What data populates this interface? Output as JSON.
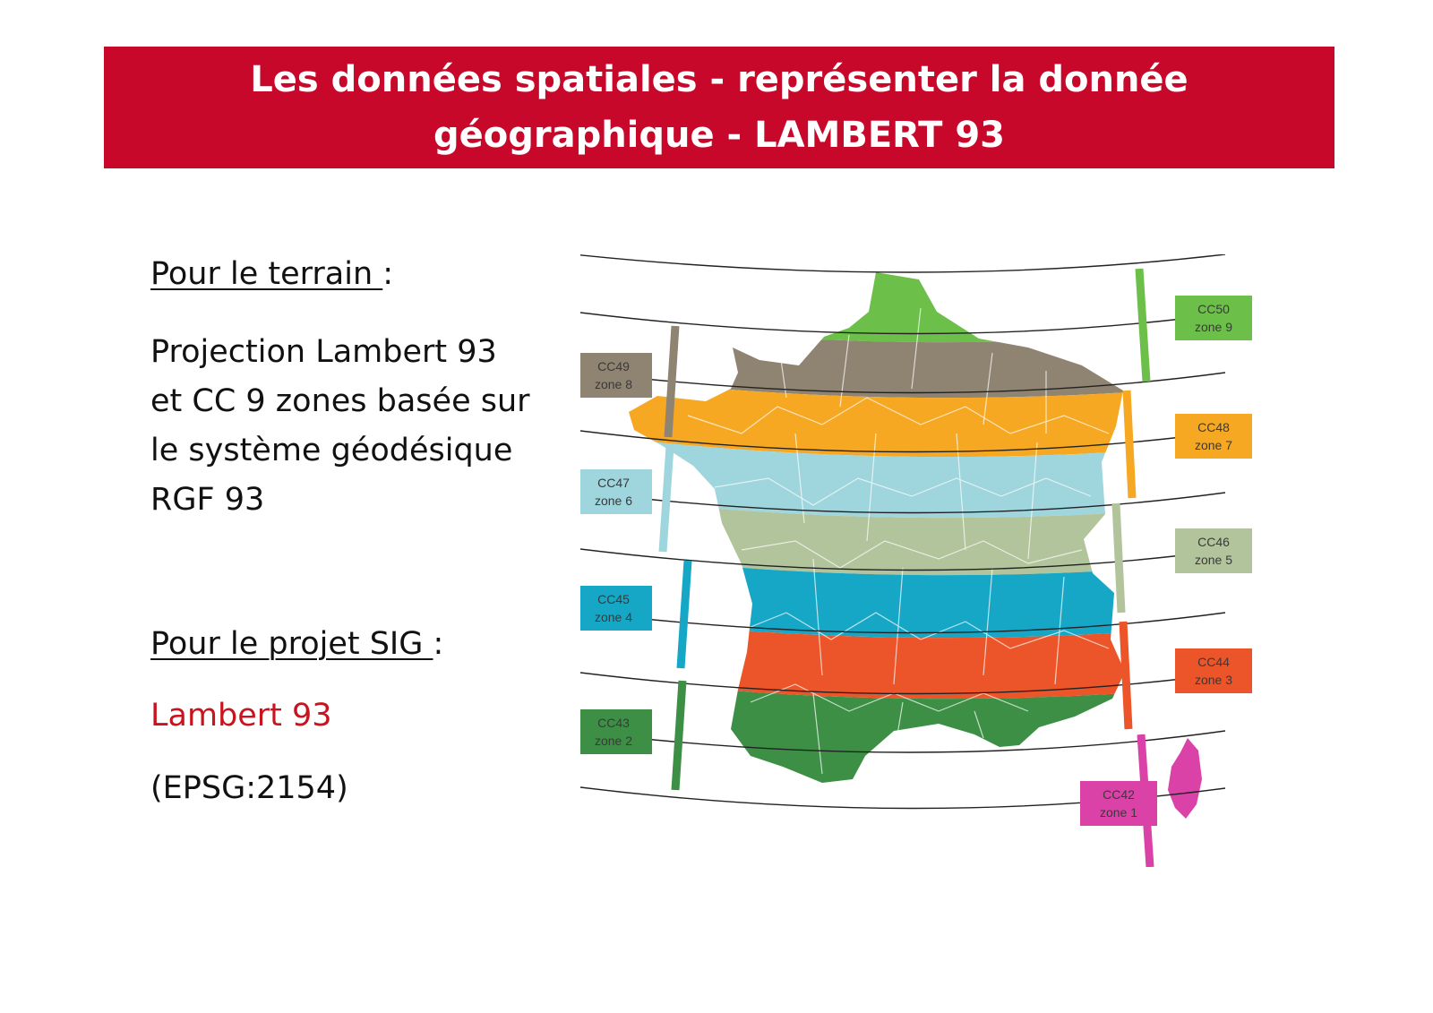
{
  "title": {
    "line1": "Les données spatiales - représenter la donnée",
    "line2": "géographique - LAMBERT 93"
  },
  "terrain": {
    "heading": "Pour le terrain ",
    "colon": ":",
    "lines": [
      "Projection Lambert 93",
      "et CC 9 zones basée sur",
      "le système géodésique",
      "RGF 93"
    ]
  },
  "projet": {
    "heading": "Pour le projet SIG ",
    "colon": ":",
    "projection": "Lambert 93",
    "epsg": "(EPSG:2154)"
  },
  "colors": {
    "banner": "#c8082a",
    "highlight": "#c8141e"
  },
  "map": {
    "zones": [
      {
        "code": "CC50",
        "zone": "zone 9",
        "color": "#6cc04a"
      },
      {
        "code": "CC49",
        "zone": "zone 8",
        "color": "#8f8371"
      },
      {
        "code": "CC48",
        "zone": "zone 7",
        "color": "#f7a823"
      },
      {
        "code": "CC47",
        "zone": "zone 6",
        "color": "#9fd5dc"
      },
      {
        "code": "CC46",
        "zone": "zone 5",
        "color": "#b2c49b"
      },
      {
        "code": "CC45",
        "zone": "zone 4",
        "color": "#16a7c7"
      },
      {
        "code": "CC44",
        "zone": "zone 3",
        "color": "#ec5429"
      },
      {
        "code": "CC43",
        "zone": "zone 2",
        "color": "#3c8f45"
      },
      {
        "code": "CC42",
        "zone": "zone 1",
        "color": "#da42a7"
      }
    ]
  }
}
